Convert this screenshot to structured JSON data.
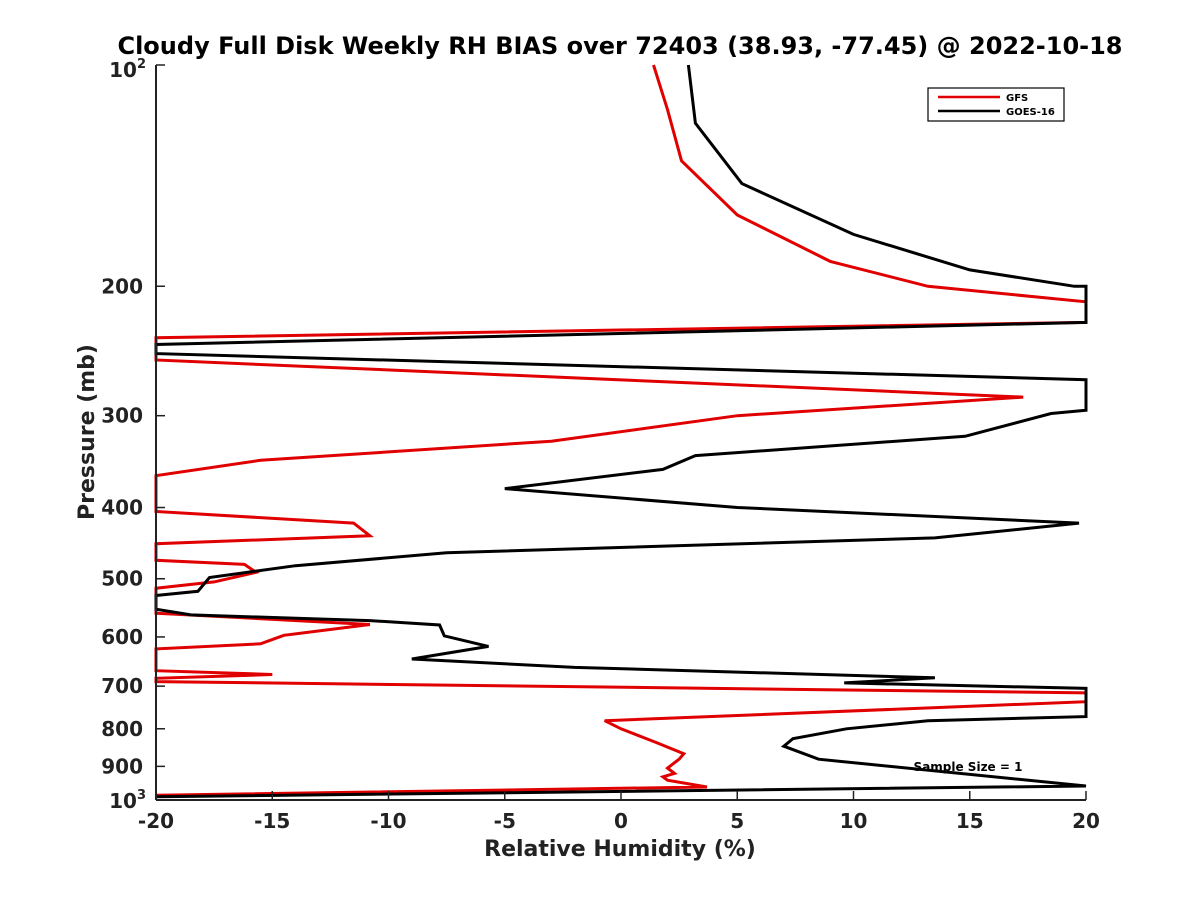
{
  "chart_data": {
    "type": "line",
    "title": "Cloudy Full Disk Weekly RH BIAS over 72403 (38.93, -77.45) @ 2022-10-18",
    "xlabel": "Relative Humidity (%)",
    "ylabel": "Pressure (mb)",
    "xlim": [
      -20,
      20
    ],
    "ylim": [
      100,
      1000
    ],
    "y_scale": "log",
    "y_reversed": true,
    "x_ticks": [
      -20,
      -15,
      -10,
      -5,
      0,
      5,
      10,
      15,
      20
    ],
    "x_tick_labels": [
      "-20",
      "-15",
      "-10",
      "-5",
      "0",
      "5",
      "10",
      "15",
      "20"
    ],
    "y_ticks": [
      100,
      200,
      300,
      400,
      500,
      600,
      700,
      800,
      900,
      1000
    ],
    "y_tick_labels": [
      {
        "base": "10",
        "exp": "2"
      },
      {
        "base": "200"
      },
      {
        "base": "300"
      },
      {
        "base": "400"
      },
      {
        "base": "500"
      },
      {
        "base": "600"
      },
      {
        "base": "700"
      },
      {
        "base": "800"
      },
      {
        "base": "900"
      },
      {
        "base": "10",
        "exp": "3"
      }
    ],
    "grid": false,
    "legend": "top-right",
    "annotation": "Sample Size = 1",
    "series": [
      {
        "name": "GFS",
        "color": "#e00000",
        "points": [
          [
            1.4,
            100
          ],
          [
            2.0,
            115
          ],
          [
            2.6,
            135
          ],
          [
            5.0,
            160
          ],
          [
            9.0,
            185
          ],
          [
            13.2,
            200
          ],
          [
            20,
            210
          ],
          [
            20,
            224
          ],
          [
            -20,
            235
          ],
          [
            -20,
            252
          ],
          [
            17.3,
            283
          ],
          [
            5.0,
            300
          ],
          [
            -3.0,
            325
          ],
          [
            -15.5,
            345
          ],
          [
            -20,
            362
          ],
          [
            -20,
            405
          ],
          [
            -11.5,
            420
          ],
          [
            -10.8,
            437
          ],
          [
            -20,
            448
          ],
          [
            -20,
            472
          ],
          [
            -16.2,
            478
          ],
          [
            -15.7,
            490
          ],
          [
            -17.5,
            505
          ],
          [
            -20,
            515
          ],
          [
            -20,
            557
          ],
          [
            -10.8,
            577
          ],
          [
            -14.5,
            597
          ],
          [
            -15.5,
            613
          ],
          [
            -20,
            623
          ],
          [
            -20,
            667
          ],
          [
            -15,
            675
          ],
          [
            -20,
            683
          ],
          [
            -20,
            690
          ],
          [
            20,
            715
          ],
          [
            20,
            735
          ],
          [
            -0.7,
            780
          ],
          [
            0.0,
            800
          ],
          [
            1.5,
            835
          ],
          [
            2.7,
            865
          ],
          [
            2.5,
            880
          ],
          [
            2.0,
            905
          ],
          [
            2.3,
            920
          ],
          [
            1.8,
            930
          ],
          [
            2.0,
            940
          ],
          [
            3.7,
            960
          ],
          [
            -20,
            985
          ]
        ]
      },
      {
        "name": "GOES-16",
        "color": "#000000",
        "points": [
          [
            2.9,
            100
          ],
          [
            3.2,
            120
          ],
          [
            5.2,
            145
          ],
          [
            10.0,
            170
          ],
          [
            15.0,
            190
          ],
          [
            19.5,
            200
          ],
          [
            20,
            200
          ],
          [
            20,
            224
          ],
          [
            -20,
            240
          ],
          [
            -20,
            247
          ],
          [
            20,
            268
          ],
          [
            20,
            295
          ],
          [
            18.5,
            298
          ],
          [
            14.8,
            320
          ],
          [
            3.2,
            340
          ],
          [
            1.8,
            355
          ],
          [
            -5.0,
            377
          ],
          [
            5.0,
            400
          ],
          [
            19.7,
            420
          ],
          [
            13.5,
            440
          ],
          [
            -7.5,
            461
          ],
          [
            -14.0,
            480
          ],
          [
            -17.7,
            498
          ],
          [
            -18.2,
            520
          ],
          [
            -20,
            527
          ],
          [
            -20,
            550
          ],
          [
            -18.5,
            560
          ],
          [
            -10.8,
            570
          ],
          [
            -7.8,
            578
          ],
          [
            -7.6,
            598
          ],
          [
            -5.7,
            618
          ],
          [
            -9.0,
            643
          ],
          [
            -2.0,
            660
          ],
          [
            13.5,
            682
          ],
          [
            9.6,
            693
          ],
          [
            20,
            705
          ],
          [
            20,
            770
          ],
          [
            13.2,
            780
          ],
          [
            9.7,
            800
          ],
          [
            7.4,
            825
          ],
          [
            7.0,
            845
          ],
          [
            8.5,
            880
          ],
          [
            20,
            957
          ],
          [
            -20,
            990
          ]
        ]
      }
    ]
  }
}
